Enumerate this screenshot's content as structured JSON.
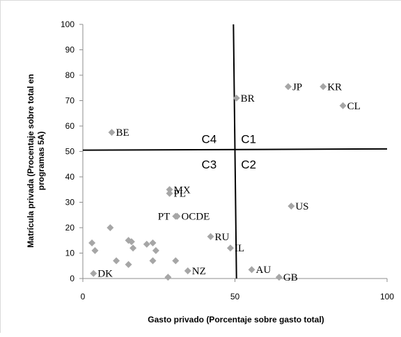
{
  "chart_data": {
    "type": "scatter",
    "title": "",
    "xlabel": "Gasto privado (Porcentaje sobre gasto total)",
    "ylabel": "Matrícula privada (Procentaje sobre total en programas 5A)",
    "xlim": [
      0,
      100
    ],
    "ylim": [
      0,
      100
    ],
    "x_ticks": [
      "0",
      "50",
      "100"
    ],
    "y_ticks": [
      "0",
      "10",
      "20",
      "30",
      "40",
      "50",
      "60",
      "70",
      "80",
      "90",
      "100"
    ],
    "grid": false,
    "legend": "none",
    "marker": "diamond",
    "marker_color": "#a6a6a6",
    "points": [
      {
        "label": "BE",
        "x": 9.5,
        "y": 57.5
      },
      {
        "label": "BR",
        "x": 50.5,
        "y": 71
      },
      {
        "label": "JP",
        "x": 67.5,
        "y": 75.5
      },
      {
        "label": "KR",
        "x": 79,
        "y": 75.5
      },
      {
        "label": "CL",
        "x": 85.5,
        "y": 68
      },
      {
        "label": "MX",
        "x": 28.5,
        "y": 35
      },
      {
        "label": "PL",
        "x": 28.5,
        "y": 33.5
      },
      {
        "label": "PT",
        "x": 30.5,
        "y": 24.5
      },
      {
        "label": "OCDE",
        "x": 31,
        "y": 24.5
      },
      {
        "label": "US",
        "x": 68.5,
        "y": 28.5
      },
      {
        "label": "RU",
        "x": 42,
        "y": 16.5
      },
      {
        "label": "IL",
        "x": 48.5,
        "y": 12
      },
      {
        "label": "DK",
        "x": 3.5,
        "y": 2
      },
      {
        "label": "NZ",
        "x": 34.5,
        "y": 3
      },
      {
        "label": "AU",
        "x": 55.5,
        "y": 3.5
      },
      {
        "label": "GB",
        "x": 64.5,
        "y": 0.5
      },
      {
        "label": "",
        "x": 9,
        "y": 20
      },
      {
        "label": "",
        "x": 3,
        "y": 14
      },
      {
        "label": "",
        "x": 4,
        "y": 11
      },
      {
        "label": "",
        "x": 11,
        "y": 7
      },
      {
        "label": "",
        "x": 15,
        "y": 5.5
      },
      {
        "label": "",
        "x": 15,
        "y": 15
      },
      {
        "label": "",
        "x": 16,
        "y": 14.5
      },
      {
        "label": "",
        "x": 16.5,
        "y": 12
      },
      {
        "label": "",
        "x": 21,
        "y": 13.5
      },
      {
        "label": "",
        "x": 23,
        "y": 14
      },
      {
        "label": "",
        "x": 24,
        "y": 11
      },
      {
        "label": "",
        "x": 23,
        "y": 7
      },
      {
        "label": "",
        "x": 28,
        "y": 0.5
      },
      {
        "label": "",
        "x": 30.5,
        "y": 7
      }
    ],
    "divider_lines": [
      {
        "orientation": "vertical",
        "x1": 49.5,
        "y1": 100,
        "x2": 50.5,
        "y2": 0
      },
      {
        "orientation": "horizontal",
        "x1": 0,
        "y1": 50.5,
        "x2": 100,
        "y2": 51
      }
    ],
    "quadrant_labels": [
      {
        "label": "C4",
        "x": 44,
        "y": 55
      },
      {
        "label": "C1",
        "x": 52,
        "y": 55
      },
      {
        "label": "C3",
        "x": 44,
        "y": 45
      },
      {
        "label": "C2",
        "x": 52,
        "y": 45
      }
    ]
  }
}
